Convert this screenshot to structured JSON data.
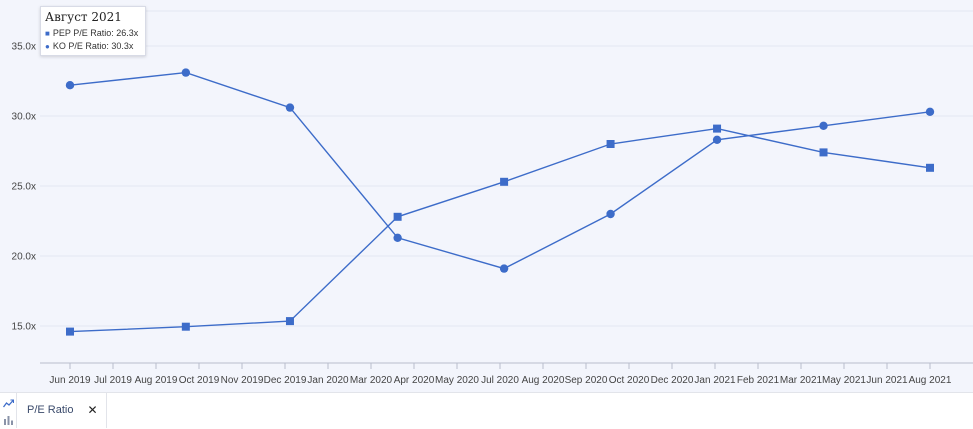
{
  "colors": {
    "series": "#3d6cc9",
    "grid": "#e3e7f2",
    "background": "#f3f5fc"
  },
  "tooltip": {
    "title": "Август 2021",
    "rows": [
      {
        "marker": "■",
        "label": "PEP P/E Ratio",
        "value": "26.3x"
      },
      {
        "marker": "●",
        "label": "KO P/E Ratio",
        "value": "30.3x"
      }
    ]
  },
  "bottom_bar": {
    "tab_label": "P/E Ratio",
    "close_glyph": "✕",
    "icons": [
      "line-chart-icon",
      "bar-chart-icon"
    ]
  },
  "chart_data": {
    "type": "line",
    "title": "",
    "xlabel": "",
    "ylabel": "",
    "x_tick_labels": [
      "Jun 2019",
      "Jul 2019",
      "Aug 2019",
      "Oct 2019",
      "Nov 2019",
      "Dec 2019",
      "Jan 2020",
      "Mar 2020",
      "Apr 2020",
      "May 2020",
      "Jul 2020",
      "Aug 2020",
      "Sep 2020",
      "Oct 2020",
      "Dec 2020",
      "Jan 2021",
      "Feb 2021",
      "Mar 2021",
      "May 2021",
      "Jun 2021",
      "Aug 2021"
    ],
    "y_ticks": [
      15,
      20,
      25,
      30,
      35
    ],
    "y_tick_labels": [
      "15.0x",
      "20.0x",
      "25.0x",
      "30.0x",
      "35.0x"
    ],
    "ylim": [
      13,
      38
    ],
    "grid": true,
    "series": [
      {
        "name": "PEP P/E Ratio",
        "marker": "square",
        "points": [
          {
            "x": "2019-06-29",
            "y": 14.6
          },
          {
            "x": "2019-10-06",
            "y": 14.95
          },
          {
            "x": "2020-01-03",
            "y": 15.35
          },
          {
            "x": "2020-04-04",
            "y": 22.8
          },
          {
            "x": "2020-07-04",
            "y": 25.3
          },
          {
            "x": "2020-10-03",
            "y": 28.0
          },
          {
            "x": "2021-01-02",
            "y": 29.1
          },
          {
            "x": "2021-04-03",
            "y": 27.4
          },
          {
            "x": "2021-07-03",
            "y": 26.3
          }
        ]
      },
      {
        "name": "KO P/E Ratio",
        "marker": "circle",
        "points": [
          {
            "x": "2019-06-29",
            "y": 32.2
          },
          {
            "x": "2019-10-06",
            "y": 33.1
          },
          {
            "x": "2020-01-03",
            "y": 30.6
          },
          {
            "x": "2020-04-04",
            "y": 21.3
          },
          {
            "x": "2020-07-04",
            "y": 19.1
          },
          {
            "x": "2020-10-03",
            "y": 23.0
          },
          {
            "x": "2021-01-02",
            "y": 28.3
          },
          {
            "x": "2021-04-03",
            "y": 29.3
          },
          {
            "x": "2021-07-03",
            "y": 30.3
          }
        ]
      }
    ]
  }
}
